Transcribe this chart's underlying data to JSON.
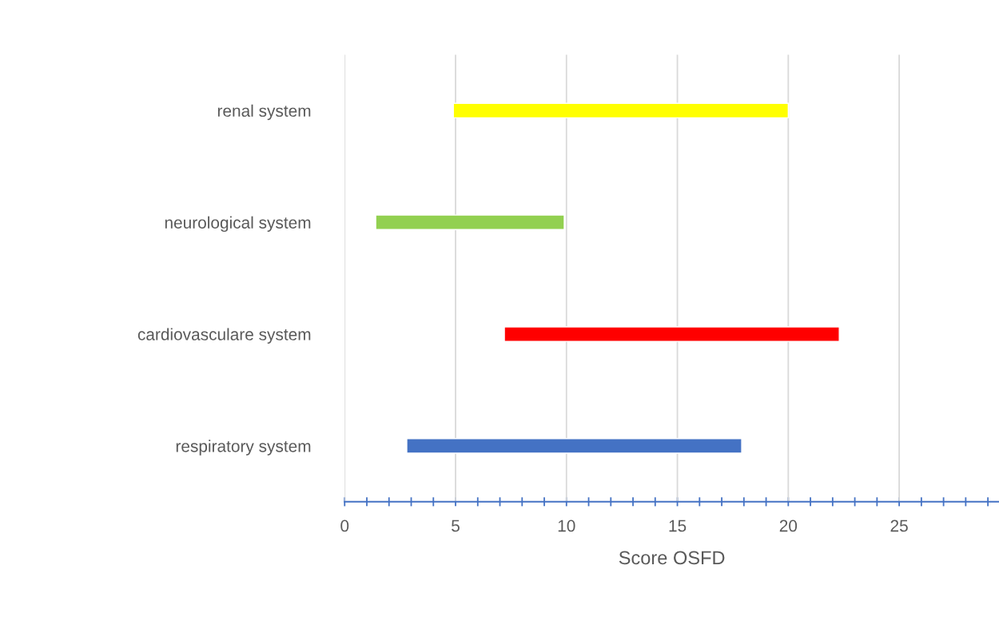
{
  "chart_data": {
    "type": "bar",
    "orientation": "horizontal",
    "xlabel": "Score OSFD",
    "categories": [
      "renal system",
      "neurological system",
      "cardiovasculare system",
      "respiratory system"
    ],
    "base": [
      4.9,
      1.4,
      7.2,
      2.8
    ],
    "values": [
      15.1,
      8.5,
      15.1,
      15.1
    ],
    "colors": [
      "#ffff00",
      "#92d050",
      "#ff0000",
      "#4472c4"
    ],
    "xlim": [
      0,
      29.5
    ],
    "xticks": [
      0,
      {
        "value": 1,
        "label": null
      },
      {
        "value": 2,
        "label": null
      },
      {
        "value": 3,
        "label": null
      },
      {
        "value": 4,
        "label": null
      },
      5,
      {
        "value": 6,
        "label": null
      },
      {
        "value": 7,
        "label": null
      },
      {
        "value": 8,
        "label": null
      },
      {
        "value": 9,
        "label": null
      },
      10,
      {
        "value": 11,
        "label": null
      },
      {
        "value": 12,
        "label": null
      },
      {
        "value": 13,
        "label": null
      },
      {
        "value": 14,
        "label": null
      },
      15,
      {
        "value": 16,
        "label": null
      },
      {
        "value": 17,
        "label": null
      },
      {
        "value": 18,
        "label": null
      },
      {
        "value": 19,
        "label": null
      },
      20,
      {
        "value": 21,
        "label": null
      },
      {
        "value": 22,
        "label": null
      },
      {
        "value": 23,
        "label": null
      },
      {
        "value": 24,
        "label": null
      },
      25,
      {
        "value": 26,
        "label": null
      },
      {
        "value": 27,
        "label": null
      },
      {
        "value": 28,
        "label": null
      },
      {
        "value": 29,
        "label": null
      }
    ],
    "grid": "x"
  }
}
